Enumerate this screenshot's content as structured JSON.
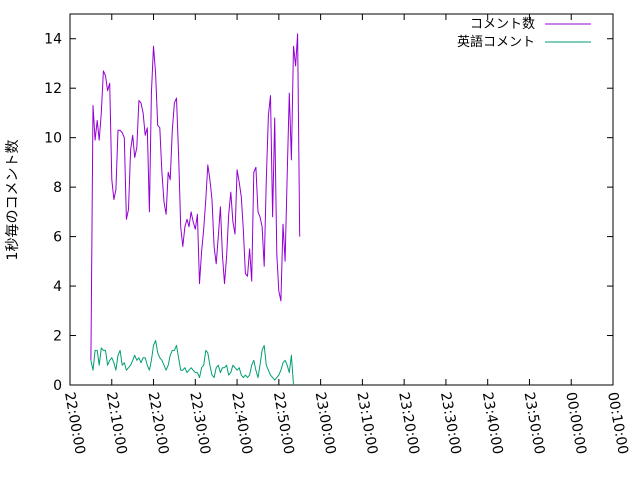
{
  "chart_data": {
    "type": "line",
    "title": "",
    "xlabel": "",
    "ylabel": "1秒毎のコメント数",
    "x_ticks": [
      "22:00:00",
      "22:10:00",
      "22:20:00",
      "22:30:00",
      "22:40:00",
      "22:50:00",
      "23:00:00",
      "23:10:00",
      "23:20:00",
      "23:30:00",
      "23:40:00",
      "23:50:00",
      "00:00:00",
      "00:10:00"
    ],
    "xlim": [
      "22:00:00",
      "00:10:00"
    ],
    "y_ticks": [
      "0",
      "2",
      "4",
      "6",
      "8",
      "10",
      "12",
      "14"
    ],
    "ylim": [
      0,
      15
    ],
    "grid": false,
    "legend_position": "top-right",
    "series": [
      {
        "name": "コメント数",
        "color": "#9400d3",
        "points": [
          [
            "22:05:00",
            1.0
          ],
          [
            "22:05:30",
            11.3
          ],
          [
            "22:06:00",
            9.9
          ],
          [
            "22:06:30",
            10.7
          ],
          [
            "22:07:00",
            9.9
          ],
          [
            "22:07:30",
            11.0
          ],
          [
            "22:08:00",
            12.7
          ],
          [
            "22:08:30",
            12.5
          ],
          [
            "22:09:00",
            11.9
          ],
          [
            "22:09:30",
            12.2
          ],
          [
            "22:10:00",
            8.3
          ],
          [
            "22:10:30",
            7.5
          ],
          [
            "22:11:00",
            7.9
          ],
          [
            "22:11:30",
            10.3
          ],
          [
            "22:12:00",
            10.3
          ],
          [
            "22:12:30",
            10.2
          ],
          [
            "22:13:00",
            10.0
          ],
          [
            "22:13:30",
            6.7
          ],
          [
            "22:14:00",
            7.1
          ],
          [
            "22:14:30",
            9.5
          ],
          [
            "22:15:00",
            10.1
          ],
          [
            "22:15:30",
            9.2
          ],
          [
            "22:16:00",
            9.6
          ],
          [
            "22:16:30",
            11.5
          ],
          [
            "22:17:00",
            11.4
          ],
          [
            "22:17:30",
            11.0
          ],
          [
            "22:18:00",
            10.1
          ],
          [
            "22:18:30",
            10.4
          ],
          [
            "22:19:00",
            7.0
          ],
          [
            "22:19:30",
            11.8
          ],
          [
            "22:20:00",
            13.7
          ],
          [
            "22:20:30",
            12.6
          ],
          [
            "22:21:00",
            10.5
          ],
          [
            "22:21:30",
            10.4
          ],
          [
            "22:22:00",
            8.6
          ],
          [
            "22:22:30",
            7.4
          ],
          [
            "22:23:00",
            6.9
          ],
          [
            "22:23:30",
            8.6
          ],
          [
            "22:24:00",
            8.3
          ],
          [
            "22:24:30",
            10.3
          ],
          [
            "22:25:00",
            11.4
          ],
          [
            "22:25:30",
            11.6
          ],
          [
            "22:26:00",
            9.3
          ],
          [
            "22:26:30",
            6.4
          ],
          [
            "22:27:00",
            5.6
          ],
          [
            "22:27:30",
            6.4
          ],
          [
            "22:28:00",
            6.7
          ],
          [
            "22:28:30",
            6.4
          ],
          [
            "22:29:00",
            7.0
          ],
          [
            "22:29:30",
            6.6
          ],
          [
            "22:30:00",
            6.3
          ],
          [
            "22:30:30",
            6.9
          ],
          [
            "22:31:00",
            4.1
          ],
          [
            "22:31:30",
            5.4
          ],
          [
            "22:32:00",
            6.3
          ],
          [
            "22:32:30",
            7.5
          ],
          [
            "22:33:00",
            8.9
          ],
          [
            "22:33:30",
            8.3
          ],
          [
            "22:34:00",
            7.5
          ],
          [
            "22:34:30",
            5.6
          ],
          [
            "22:35:00",
            4.9
          ],
          [
            "22:35:30",
            6.0
          ],
          [
            "22:36:00",
            7.2
          ],
          [
            "22:36:30",
            5.2
          ],
          [
            "22:37:00",
            4.1
          ],
          [
            "22:37:30",
            5.2
          ],
          [
            "22:38:00",
            6.9
          ],
          [
            "22:38:30",
            7.8
          ],
          [
            "22:39:00",
            6.6
          ],
          [
            "22:39:30",
            6.1
          ],
          [
            "22:40:00",
            8.7
          ],
          [
            "22:40:30",
            8.2
          ],
          [
            "22:41:00",
            7.6
          ],
          [
            "22:41:30",
            6.3
          ],
          [
            "22:42:00",
            4.5
          ],
          [
            "22:42:30",
            4.4
          ],
          [
            "22:43:00",
            5.5
          ],
          [
            "22:43:30",
            4.2
          ],
          [
            "22:44:00",
            8.6
          ],
          [
            "22:44:30",
            8.8
          ],
          [
            "22:45:00",
            7.0
          ],
          [
            "22:45:30",
            6.8
          ],
          [
            "22:46:00",
            6.4
          ],
          [
            "22:46:30",
            4.8
          ],
          [
            "22:47:00",
            8.3
          ],
          [
            "22:47:30",
            10.9
          ],
          [
            "22:48:00",
            11.7
          ],
          [
            "22:48:30",
            6.8
          ],
          [
            "22:49:00",
            10.8
          ],
          [
            "22:49:30",
            5.3
          ],
          [
            "22:50:00",
            3.8
          ],
          [
            "22:50:30",
            3.4
          ],
          [
            "22:51:00",
            6.5
          ],
          [
            "22:51:30",
            5.0
          ],
          [
            "22:52:00",
            8.5
          ],
          [
            "22:52:30",
            11.8
          ],
          [
            "22:53:00",
            9.1
          ],
          [
            "22:53:30",
            13.7
          ],
          [
            "22:54:00",
            12.9
          ],
          [
            "22:54:30",
            14.2
          ],
          [
            "22:55:00",
            6.0
          ]
        ]
      },
      {
        "name": "英語コメント",
        "color": "#009e73",
        "points": [
          [
            "22:05:00",
            1.0
          ],
          [
            "22:05:30",
            0.6
          ],
          [
            "22:06:00",
            1.4
          ],
          [
            "22:06:30",
            1.4
          ],
          [
            "22:07:00",
            0.8
          ],
          [
            "22:07:30",
            1.5
          ],
          [
            "22:08:00",
            1.4
          ],
          [
            "22:08:30",
            1.4
          ],
          [
            "22:09:00",
            0.8
          ],
          [
            "22:09:30",
            1.0
          ],
          [
            "22:10:00",
            1.1
          ],
          [
            "22:10:30",
            0.9
          ],
          [
            "22:11:00",
            0.6
          ],
          [
            "22:11:30",
            1.2
          ],
          [
            "22:12:00",
            1.4
          ],
          [
            "22:12:30",
            0.8
          ],
          [
            "22:13:00",
            0.9
          ],
          [
            "22:13:30",
            0.6
          ],
          [
            "22:14:00",
            0.7
          ],
          [
            "22:14:30",
            0.8
          ],
          [
            "22:15:00",
            1.0
          ],
          [
            "22:15:30",
            1.2
          ],
          [
            "22:16:00",
            1.0
          ],
          [
            "22:16:30",
            1.1
          ],
          [
            "22:17:00",
            0.9
          ],
          [
            "22:17:30",
            1.1
          ],
          [
            "22:18:00",
            1.1
          ],
          [
            "22:18:30",
            0.8
          ],
          [
            "22:19:00",
            0.6
          ],
          [
            "22:19:30",
            1.0
          ],
          [
            "22:20:00",
            1.6
          ],
          [
            "22:20:30",
            1.8
          ],
          [
            "22:21:00",
            1.3
          ],
          [
            "22:21:30",
            1.1
          ],
          [
            "22:22:00",
            1.0
          ],
          [
            "22:22:30",
            0.8
          ],
          [
            "22:23:00",
            0.6
          ],
          [
            "22:23:30",
            0.8
          ],
          [
            "22:24:00",
            1.2
          ],
          [
            "22:24:30",
            1.4
          ],
          [
            "22:25:00",
            1.4
          ],
          [
            "22:25:30",
            1.6
          ],
          [
            "22:26:00",
            1.1
          ],
          [
            "22:26:30",
            0.6
          ],
          [
            "22:27:00",
            0.6
          ],
          [
            "22:27:30",
            0.7
          ],
          [
            "22:28:00",
            0.5
          ],
          [
            "22:28:30",
            0.6
          ],
          [
            "22:29:00",
            0.7
          ],
          [
            "22:29:30",
            0.6
          ],
          [
            "22:30:00",
            0.5
          ],
          [
            "22:30:30",
            0.5
          ],
          [
            "22:31:00",
            0.3
          ],
          [
            "22:31:30",
            0.7
          ],
          [
            "22:32:00",
            0.8
          ],
          [
            "22:32:30",
            1.4
          ],
          [
            "22:33:00",
            1.3
          ],
          [
            "22:33:30",
            0.8
          ],
          [
            "22:34:00",
            0.4
          ],
          [
            "22:34:30",
            0.3
          ],
          [
            "22:35:00",
            0.7
          ],
          [
            "22:35:30",
            0.8
          ],
          [
            "22:36:00",
            0.5
          ],
          [
            "22:36:30",
            0.7
          ],
          [
            "22:37:00",
            0.7
          ],
          [
            "22:37:30",
            0.8
          ],
          [
            "22:38:00",
            0.4
          ],
          [
            "22:38:30",
            0.5
          ],
          [
            "22:39:00",
            0.8
          ],
          [
            "22:39:30",
            0.7
          ],
          [
            "22:40:00",
            0.6
          ],
          [
            "22:40:30",
            0.7
          ],
          [
            "22:41:00",
            0.4
          ],
          [
            "22:41:30",
            0.3
          ],
          [
            "22:42:00",
            0.4
          ],
          [
            "22:42:30",
            0.3
          ],
          [
            "22:43:00",
            0.4
          ],
          [
            "22:43:30",
            0.8
          ],
          [
            "22:44:00",
            1.0
          ],
          [
            "22:44:30",
            0.6
          ],
          [
            "22:45:00",
            0.3
          ],
          [
            "22:45:30",
            0.8
          ],
          [
            "22:46:00",
            1.4
          ],
          [
            "22:46:30",
            1.6
          ],
          [
            "22:47:00",
            0.8
          ],
          [
            "22:47:30",
            0.6
          ],
          [
            "22:48:00",
            0.4
          ],
          [
            "22:48:30",
            0.3
          ],
          [
            "22:49:00",
            0.2
          ],
          [
            "22:49:30",
            0.3
          ],
          [
            "22:50:00",
            0.4
          ],
          [
            "22:50:30",
            0.6
          ],
          [
            "22:51:00",
            0.9
          ],
          [
            "22:51:30",
            1.0
          ],
          [
            "22:52:00",
            0.8
          ],
          [
            "22:52:30",
            0.5
          ],
          [
            "22:53:00",
            1.2
          ],
          [
            "22:53:30",
            0.0
          ]
        ]
      }
    ]
  }
}
